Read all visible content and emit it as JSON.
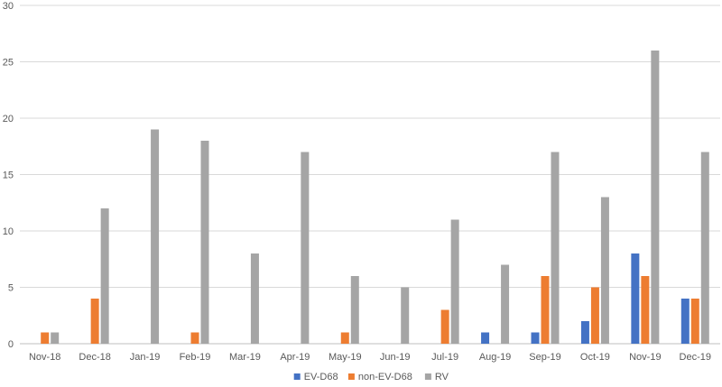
{
  "chart_data": {
    "type": "bar",
    "categories": [
      "Nov-18",
      "Dec-18",
      "Jan-19",
      "Feb-19",
      "Mar-19",
      "Apr-19",
      "May-19",
      "Jun-19",
      "Jul-19",
      "Aug-19",
      "Sep-19",
      "Oct-19",
      "Nov-19",
      "Dec-19"
    ],
    "series": [
      {
        "name": "EV-D68",
        "color": "#4472c4",
        "values": [
          0,
          0,
          0,
          0,
          0,
          0,
          0,
          0,
          0,
          1,
          1,
          2,
          8,
          4
        ]
      },
      {
        "name": "non-EV-D68",
        "color": "#ed7d31",
        "values": [
          1,
          4,
          0,
          1,
          0,
          0,
          1,
          0,
          3,
          0,
          6,
          5,
          6,
          4
        ]
      },
      {
        "name": "RV",
        "color": "#a5a5a5",
        "values": [
          1,
          12,
          19,
          18,
          8,
          17,
          6,
          5,
          11,
          7,
          17,
          13,
          26,
          17
        ]
      }
    ],
    "yticks": [
      0,
      5,
      10,
      15,
      20,
      25,
      30
    ],
    "ylim": [
      0,
      30
    ],
    "title": "",
    "xlabel": "",
    "ylabel": "",
    "grid": true,
    "legend_position": "bottom"
  }
}
